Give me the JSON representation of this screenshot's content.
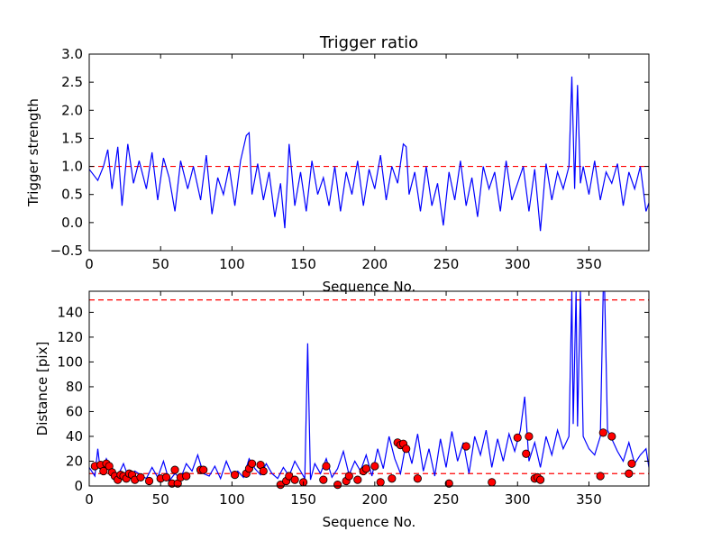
{
  "chart_data": [
    {
      "type": "line",
      "title": "Trigger ratio",
      "xlabel": "Sequence No.",
      "ylabel": "Trigger strength",
      "xlim": [
        0,
        392
      ],
      "ylim": [
        -0.5,
        3.0
      ],
      "x_ticks": [
        "0",
        "50",
        "100",
        "150",
        "200",
        "250",
        "300",
        "350"
      ],
      "y_ticks": [
        "−0.5",
        "0.0",
        "0.5",
        "1.0",
        "1.5",
        "2.0",
        "2.5",
        "3.0"
      ],
      "threshold": 1.0,
      "line_color": "#0000ff",
      "threshold_color": "#ff0000",
      "series": [
        {
          "x": [
            0,
            6,
            10,
            13,
            16,
            20,
            23,
            27,
            31,
            35,
            40,
            44,
            48,
            52,
            56,
            60,
            64,
            69,
            73,
            78,
            82,
            86,
            90,
            94,
            98,
            102,
            106,
            110,
            112,
            114,
            118,
            122,
            126,
            130,
            134,
            137,
            140,
            144,
            148,
            152,
            156,
            160,
            164,
            168,
            172,
            176,
            180,
            184,
            188,
            192,
            196,
            200,
            204,
            208,
            212,
            216,
            220,
            222,
            224,
            228,
            232,
            236,
            240,
            244,
            248,
            252,
            256,
            260,
            264,
            268,
            272,
            276,
            280,
            284,
            288,
            292,
            296,
            300,
            304,
            308,
            312,
            316,
            320,
            324,
            328,
            332,
            336,
            338,
            340,
            342,
            344,
            346,
            350,
            354,
            358,
            362,
            366,
            370,
            374,
            378,
            382,
            386,
            390,
            392
          ],
          "y": [
            0.95,
            0.75,
            1.0,
            1.3,
            0.6,
            1.35,
            0.3,
            1.4,
            0.7,
            1.1,
            0.6,
            1.25,
            0.4,
            1.15,
            0.8,
            0.2,
            1.1,
            0.6,
            1.0,
            0.4,
            1.2,
            0.15,
            0.8,
            0.5,
            1.0,
            0.3,
            1.1,
            1.55,
            1.6,
            0.5,
            1.05,
            0.4,
            0.9,
            0.1,
            0.7,
            -0.1,
            1.4,
            0.3,
            0.9,
            0.2,
            1.1,
            0.5,
            0.8,
            0.3,
            1.0,
            0.2,
            0.9,
            0.5,
            1.1,
            0.3,
            0.95,
            0.6,
            1.2,
            0.4,
            1.0,
            0.7,
            1.4,
            1.35,
            0.5,
            0.9,
            0.2,
            1.0,
            0.3,
            0.7,
            -0.05,
            0.9,
            0.4,
            1.1,
            0.3,
            0.8,
            0.1,
            1.0,
            0.6,
            0.9,
            0.2,
            1.1,
            0.4,
            0.7,
            1.0,
            0.2,
            0.95,
            -0.15,
            1.05,
            0.4,
            0.9,
            0.6,
            1.0,
            2.6,
            0.6,
            2.45,
            0.7,
            1.0,
            0.5,
            1.1,
            0.4,
            0.9,
            0.7,
            1.05,
            0.3,
            0.9,
            0.6,
            1.0,
            0.2,
            0.35
          ]
        }
      ]
    },
    {
      "type": "line",
      "title": "",
      "xlabel": "Sequence No.",
      "ylabel": "Distance [pix]",
      "xlim": [
        0,
        392
      ],
      "ylim": [
        0,
        157
      ],
      "x_ticks": [
        "0",
        "50",
        "100",
        "150",
        "200",
        "250",
        "300",
        "350"
      ],
      "y_ticks": [
        "0",
        "20",
        "40",
        "60",
        "80",
        "100",
        "120",
        "140"
      ],
      "thresholds": [
        150,
        10
      ],
      "line_color": "#0000ff",
      "threshold_color": "#ff0000",
      "marker_color": "#ff0000",
      "series": [
        {
          "x": [
            0,
            4,
            6,
            8,
            12,
            16,
            20,
            24,
            28,
            32,
            36,
            40,
            44,
            48,
            52,
            56,
            60,
            64,
            68,
            72,
            76,
            80,
            84,
            88,
            92,
            96,
            100,
            104,
            108,
            112,
            116,
            120,
            124,
            128,
            132,
            136,
            140,
            144,
            148,
            151,
            153,
            155,
            158,
            162,
            166,
            170,
            174,
            178,
            182,
            186,
            190,
            194,
            198,
            202,
            206,
            210,
            214,
            218,
            222,
            226,
            230,
            234,
            238,
            242,
            246,
            250,
            254,
            258,
            262,
            266,
            270,
            274,
            278,
            282,
            286,
            290,
            294,
            298,
            302,
            305,
            308,
            312,
            316,
            320,
            324,
            328,
            332,
            336,
            338,
            339,
            341,
            342,
            344,
            346,
            350,
            354,
            358,
            360,
            361,
            363,
            366,
            370,
            374,
            378,
            382,
            386,
            390,
            392
          ],
          "y": [
            15,
            8,
            30,
            10,
            22,
            12,
            8,
            18,
            5,
            12,
            9,
            6,
            15,
            7,
            20,
            4,
            10,
            6,
            18,
            12,
            25,
            10,
            8,
            16,
            6,
            20,
            9,
            12,
            7,
            22,
            14,
            9,
            18,
            10,
            6,
            15,
            8,
            20,
            12,
            6,
            115,
            5,
            18,
            10,
            22,
            7,
            14,
            28,
            9,
            20,
            12,
            25,
            8,
            30,
            14,
            40,
            22,
            10,
            35,
            18,
            42,
            12,
            30,
            8,
            38,
            15,
            44,
            20,
            35,
            10,
            40,
            25,
            45,
            15,
            38,
            20,
            42,
            28,
            45,
            72,
            20,
            35,
            15,
            40,
            25,
            45,
            30,
            40,
            157,
            50,
            157,
            48,
            157,
            40,
            30,
            25,
            40,
            157,
            157,
            45,
            38,
            28,
            20,
            35,
            18,
            25,
            30,
            15
          ]
        }
      ],
      "markers": {
        "x": [
          4,
          8,
          10,
          12,
          14,
          16,
          18,
          20,
          22,
          24,
          26,
          28,
          30,
          32,
          36,
          42,
          50,
          54,
          58,
          60,
          62,
          64,
          68,
          78,
          80,
          102,
          110,
          112,
          114,
          120,
          122,
          134,
          138,
          140,
          144,
          150,
          164,
          166,
          174,
          180,
          182,
          188,
          192,
          194,
          200,
          204,
          212,
          216,
          218,
          220,
          222,
          230,
          252,
          264,
          282,
          300,
          306,
          308,
          312,
          314,
          316,
          358,
          360,
          366,
          378,
          380
        ],
        "y": [
          16,
          17,
          12,
          18,
          16,
          11,
          8,
          5,
          9,
          8,
          6,
          10,
          9,
          5,
          7,
          4,
          6,
          7,
          2,
          13,
          2,
          7,
          8,
          13,
          13,
          9,
          10,
          14,
          18,
          17,
          12,
          1,
          4,
          8,
          5,
          3,
          5,
          16,
          1,
          4,
          8,
          5,
          12,
          14,
          16,
          3,
          6,
          35,
          33,
          34,
          30,
          6,
          2,
          32,
          3,
          39,
          26,
          40,
          6,
          7,
          5,
          8,
          43,
          40,
          10,
          18
        ]
      }
    }
  ]
}
